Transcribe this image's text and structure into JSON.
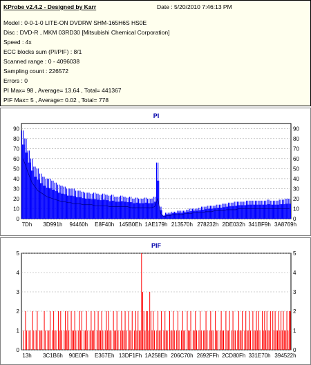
{
  "header": {
    "title": "KProbe v2.4.2 - Designed by Karr",
    "date": "Date : 5/20/2010 7:46:13 PM",
    "lines": [
      "Model : 0-0-1-0 LITE-ON DVDRW SHM-165H6S HS0E",
      "Disc : DVD-R , MKM 03RD30  [Mitsubishi Chemical Corporation]",
      "Speed : 4x",
      "ECC blocks sum (PI/PIF) : 8/1",
      "Scanned range : 0 - 4096038",
      "Sampling count : 226572",
      "Errors : 0",
      "PI Max= 98 , Average= 13.64 , Total= 441367",
      "PIF Max= 5 , Average= 0.02 , Total= 778"
    ]
  },
  "colors": {
    "pi_series": "#0000ff",
    "pif_series": "#ff0000",
    "panel_bg": "#ffffee",
    "grid": "#a0a0a0",
    "title": "#0000aa"
  },
  "chart_data": [
    {
      "type": "area",
      "title": "PI",
      "xlabel": "",
      "ylabel": "",
      "ylim": [
        0,
        95
      ],
      "yticks": [
        0,
        10,
        20,
        30,
        40,
        50,
        60,
        70,
        80,
        90
      ],
      "grid": "horizontal dashed",
      "x_tick_labels": [
        "7Dh",
        "3D991h",
        "94460h",
        "E8F40h",
        "145B0Eh",
        "1AE179h",
        "213570h",
        "278232h",
        "2DE032h",
        "341BF9h",
        "3A8769h"
      ],
      "x_range": [
        0,
        4096038
      ],
      "series": [
        {
          "values_max": [
            88,
            80,
            68,
            60,
            52,
            50,
            45,
            42,
            40,
            40,
            38,
            36,
            34,
            33,
            32,
            30,
            30,
            30,
            28,
            28,
            27,
            26,
            26,
            25,
            26,
            25,
            24,
            25,
            24,
            23,
            24,
            22,
            22,
            23,
            22,
            21,
            22,
            20,
            21,
            20,
            20,
            21,
            20,
            20,
            22,
            56,
            12,
            4,
            6,
            6,
            7,
            7,
            8,
            8,
            8,
            9,
            10,
            10,
            10,
            11,
            12,
            12,
            13,
            13,
            13,
            14,
            14,
            15,
            15,
            16,
            16,
            17,
            17,
            17,
            17,
            18,
            18,
            18,
            18,
            18,
            18,
            18,
            19,
            18,
            18,
            18,
            19,
            19,
            20,
            20
          ],
          "values_avg": [
            60,
            52,
            44,
            36,
            32,
            28,
            26,
            24,
            22,
            21,
            20,
            19,
            18,
            17,
            17,
            16,
            16,
            15,
            15,
            15,
            14,
            14,
            14,
            14,
            13,
            13,
            13,
            13,
            13,
            12,
            12,
            12,
            12,
            12,
            12,
            12,
            11,
            11,
            11,
            11,
            11,
            11,
            11,
            11,
            12,
            20,
            5,
            2,
            3,
            3,
            4,
            4,
            4,
            4,
            5,
            5,
            5,
            6,
            6,
            6,
            6,
            7,
            7,
            7,
            8,
            8,
            8,
            8,
            9,
            9,
            9,
            9,
            10,
            10,
            10,
            10,
            10,
            10,
            10,
            10,
            10,
            10,
            10,
            10,
            10,
            10,
            10,
            10,
            10,
            10
          ]
        }
      ]
    },
    {
      "type": "bar",
      "title": "PIF",
      "xlabel": "",
      "ylabel": "",
      "ylim": [
        0,
        5
      ],
      "yticks": [
        0,
        1,
        2,
        3,
        4,
        5
      ],
      "grid": "horizontal dashed",
      "x_tick_labels": [
        "13h",
        "3C1B6h",
        "90E0Fh",
        "E367Eh",
        "13DF1Fh",
        "1A258Eh",
        "206C70h",
        "2692FFh",
        "2CD80Fh",
        "331E70h",
        "394522h"
      ],
      "x_range": [
        0,
        4096038
      ],
      "series": [
        {
          "values": [
            0,
            1,
            0,
            2,
            1,
            0,
            1,
            1,
            0,
            2,
            1,
            0,
            1,
            2,
            0,
            1,
            1,
            1,
            0,
            2,
            1,
            0,
            1,
            1,
            2,
            0,
            1,
            2,
            1,
            1,
            0,
            2,
            1,
            2,
            1,
            0,
            1,
            2,
            1,
            2,
            1,
            0,
            2,
            1,
            1,
            2,
            1,
            0,
            1,
            2,
            1,
            2,
            0,
            1,
            1,
            2,
            1,
            0,
            1,
            2,
            1,
            1,
            2,
            0,
            1,
            2,
            1,
            1,
            2,
            1,
            0,
            1,
            2,
            1,
            2,
            1,
            1,
            0,
            2,
            1,
            1,
            2,
            1,
            0,
            1,
            2,
            1,
            1,
            2,
            1,
            0,
            2,
            1,
            1,
            2,
            0,
            1,
            2,
            1,
            2,
            1,
            1,
            5,
            3,
            2,
            1,
            2,
            2,
            1,
            3,
            2,
            1,
            2,
            1,
            0,
            1,
            2,
            1,
            1,
            2,
            0,
            1,
            2,
            1,
            1,
            0,
            2,
            1,
            1,
            2,
            1,
            0,
            1,
            2,
            1,
            0,
            1,
            2,
            1,
            1,
            0,
            2,
            1,
            1,
            2,
            0,
            1,
            1,
            2,
            1,
            0,
            1,
            2,
            1,
            0,
            1,
            1,
            2,
            1,
            0,
            1,
            2,
            1,
            1,
            0,
            2,
            1,
            1,
            0,
            1,
            2,
            1,
            1,
            0,
            2,
            1,
            1,
            2,
            0,
            1,
            2,
            1,
            1,
            0,
            1,
            2,
            1,
            1,
            2,
            0,
            1,
            2,
            1,
            1,
            2,
            1,
            0,
            2,
            1,
            1,
            2,
            1,
            2,
            1,
            0,
            2,
            1,
            2,
            1,
            2,
            1,
            1,
            2,
            0,
            2,
            1,
            2,
            1,
            1,
            2,
            1,
            2,
            1,
            2,
            1,
            1,
            2,
            1,
            2,
            2
          ]
        }
      ]
    }
  ]
}
